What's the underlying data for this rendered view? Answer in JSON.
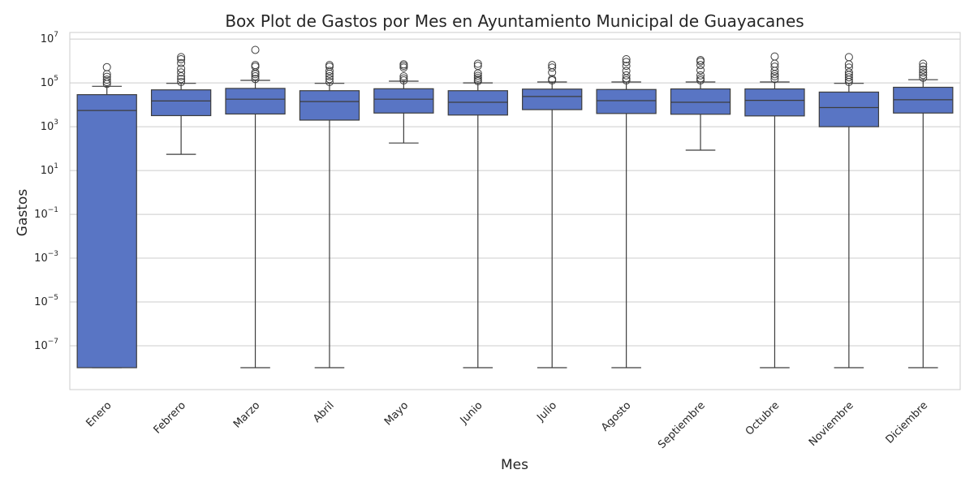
{
  "chart_data": {
    "type": "box",
    "title": "Box Plot de Gastos por Mes en Ayuntamiento Municipal de Guayacanes",
    "xlabel": "Mes",
    "ylabel": "Gastos",
    "y_scale": "log",
    "ylim": [
      1e-09,
      20000000.0
    ],
    "y_ticks": [
      {
        "base": "10",
        "exp": "7",
        "value": 10000000.0
      },
      {
        "base": "10",
        "exp": "5",
        "value": 100000.0
      },
      {
        "base": "10",
        "exp": "3",
        "value": 1000.0
      },
      {
        "base": "10",
        "exp": "1",
        "value": 10.0
      },
      {
        "base": "10",
        "exp": "−1",
        "value": 0.1
      },
      {
        "base": "10",
        "exp": "−3",
        "value": 0.001
      },
      {
        "base": "10",
        "exp": "−5",
        "value": 1e-05
      },
      {
        "base": "10",
        "exp": "−7",
        "value": 1e-07
      }
    ],
    "grid": true,
    "box_color": "#5975c4",
    "line_color": "#3d3d3d",
    "categories": [
      "Enero",
      "Febrero",
      "Marzo",
      "Abril",
      "Mayo",
      "Junio",
      "Julio",
      "Agosto",
      "Septiembre",
      "Octubre",
      "Noviembre",
      "Diciembre"
    ],
    "boxes": [
      {
        "whisker_low": 1e-08,
        "q1": 1e-08,
        "median": 5500,
        "q3": 29000,
        "whisker_high": 70000,
        "outliers": [
          90000,
          110000,
          140000,
          190000,
          250000,
          520000
        ]
      },
      {
        "whisker_low": 55,
        "q1": 3200,
        "median": 15000,
        "q3": 48000,
        "whisker_high": 95000,
        "outliers": [
          110000,
          150000,
          200000,
          300000,
          450000,
          800000,
          1200000,
          1500000
        ]
      },
      {
        "whisker_low": 1e-08,
        "q1": 3800,
        "median": 18000,
        "q3": 56000,
        "whisker_high": 130000,
        "outliers": [
          150000,
          200000,
          250000,
          300000,
          550000,
          650000,
          3200000
        ]
      },
      {
        "whisker_low": 1e-08,
        "q1": 2000,
        "median": 14000,
        "q3": 44000,
        "whisker_high": 95000,
        "outliers": [
          110000,
          150000,
          200000,
          260000,
          350000,
          550000,
          650000
        ]
      },
      {
        "whisker_low": 180,
        "q1": 4200,
        "median": 18000,
        "q3": 54000,
        "whisker_high": 120000,
        "outliers": [
          130000,
          160000,
          200000,
          500000,
          600000,
          700000
        ]
      },
      {
        "whisker_low": 1e-08,
        "q1": 3400,
        "median": 13000,
        "q3": 44000,
        "whisker_high": 100000,
        "outliers": [
          120000,
          140000,
          170000,
          210000,
          270000,
          600000,
          750000
        ]
      },
      {
        "whisker_low": 1e-08,
        "q1": 6000,
        "median": 24000,
        "q3": 52000,
        "whisker_high": 110000,
        "outliers": [
          130000,
          150000,
          300000,
          500000,
          650000
        ]
      },
      {
        "whisker_low": 1e-08,
        "q1": 4000,
        "median": 15500,
        "q3": 50000,
        "whisker_high": 110000,
        "outliers": [
          130000,
          160000,
          220000,
          350000,
          600000,
          900000,
          1200000
        ]
      },
      {
        "whisker_low": 85,
        "q1": 3700,
        "median": 13000,
        "q3": 53000,
        "whisker_high": 110000,
        "outliers": [
          130000,
          160000,
          220000,
          380000,
          650000,
          950000,
          1100000
        ]
      },
      {
        "whisker_low": 1e-08,
        "q1": 3100,
        "median": 16000,
        "q3": 53000,
        "whisker_high": 110000,
        "outliers": [
          150000,
          200000,
          250000,
          350000,
          550000,
          750000,
          1600000
        ]
      },
      {
        "whisker_low": 1e-08,
        "q1": 1000,
        "median": 7500,
        "q3": 38000,
        "whisker_high": 95000,
        "outliers": [
          110000,
          140000,
          180000,
          230000,
          300000,
          500000,
          700000,
          1500000
        ]
      },
      {
        "whisker_low": 1e-08,
        "q1": 4200,
        "median": 17000,
        "q3": 63000,
        "whisker_high": 140000,
        "outliers": [
          170000,
          230000,
          300000,
          400000,
          550000,
          750000
        ]
      }
    ]
  }
}
